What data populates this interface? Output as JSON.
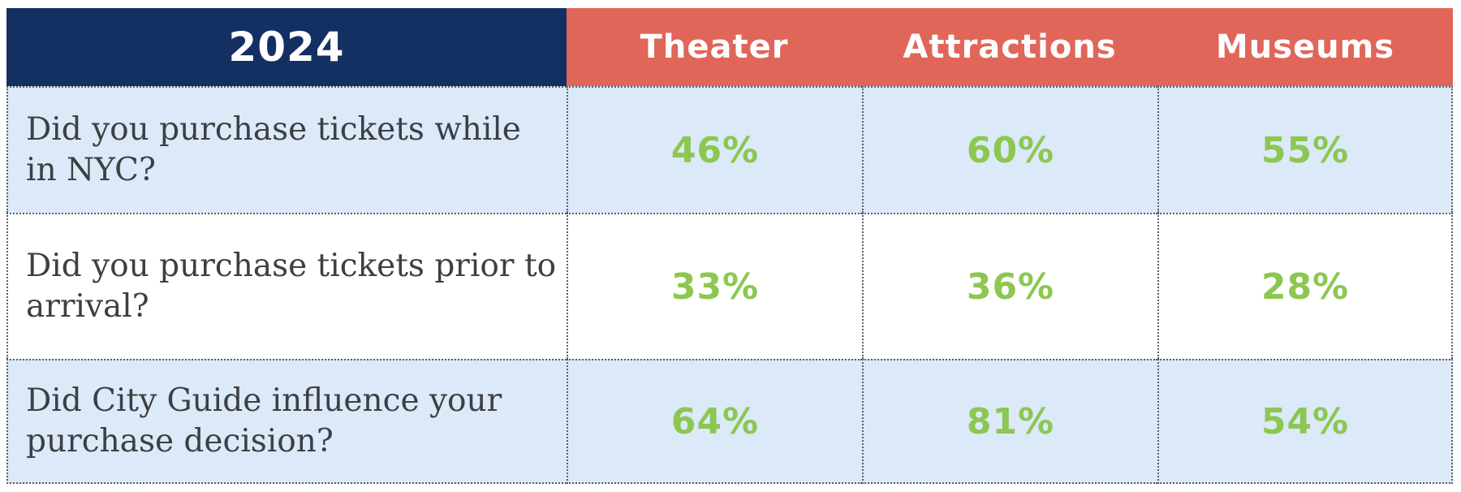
{
  "chart_data": {
    "type": "table",
    "header": {
      "year": "2024",
      "categories": [
        "Theater",
        "Attractions",
        "Museums"
      ]
    },
    "rows": [
      {
        "question": "Did you purchase tickets while in NYC?",
        "values": [
          "46%",
          "60%",
          "55%"
        ]
      },
      {
        "question": "Did you purchase tickets prior to arrival?",
        "values": [
          "33%",
          "36%",
          "28%"
        ]
      },
      {
        "question": "Did City Guide influence your purchase decision?",
        "values": [
          "64%",
          "81%",
          "54%"
        ]
      }
    ]
  },
  "colors": {
    "header_year_bg": "#143063",
    "header_category_bg": "#e0665a",
    "row_alt_bg": "#dbe9f8",
    "value_text": "#8cc751"
  }
}
